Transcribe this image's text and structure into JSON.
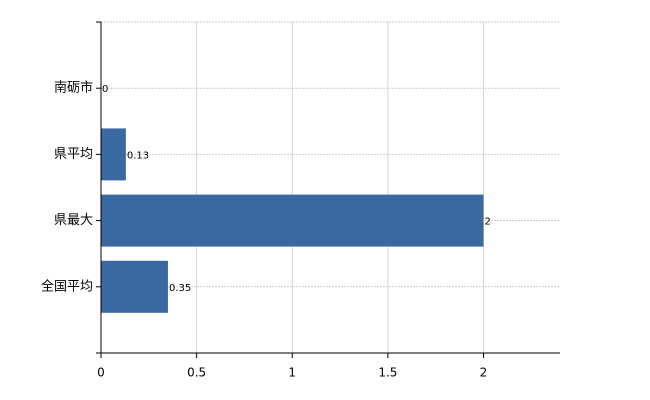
{
  "chart_data": {
    "type": "barh",
    "categories": [
      "南砺市",
      "県平均",
      "県最大",
      "全国平均"
    ],
    "values": [
      0,
      0.13,
      2,
      0.35
    ],
    "color": "#3a68a0",
    "xlim": [
      0,
      2.4
    ],
    "xticks": [
      0,
      0.5,
      1,
      1.5,
      2
    ],
    "grid": true
  }
}
